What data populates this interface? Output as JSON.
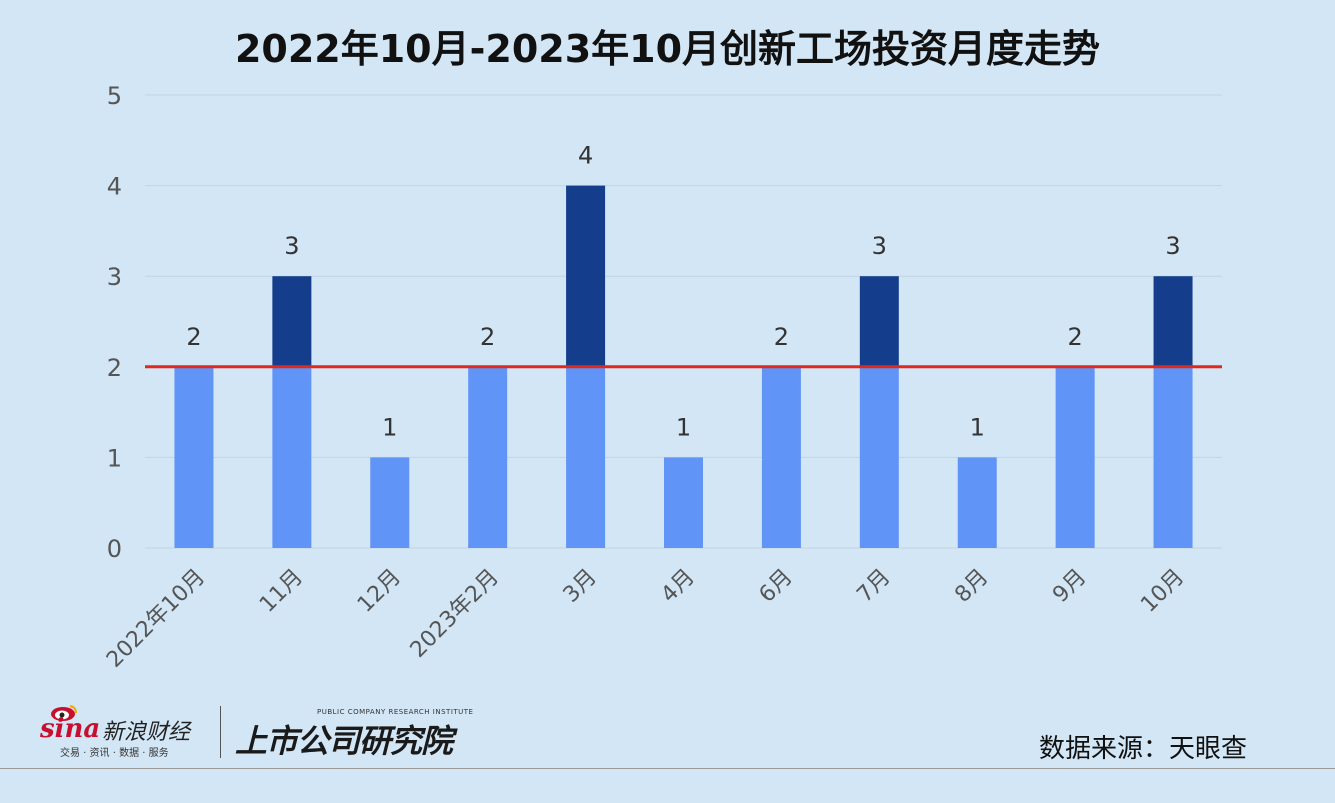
{
  "chart_data": {
    "type": "bar",
    "title": "2022年10月-2023年10月创新工场投资月度走势",
    "categories": [
      "2022年10月",
      "11月",
      "12月",
      "2023年2月",
      "3月",
      "4月",
      "6月",
      "7月",
      "8月",
      "9月",
      "10月"
    ],
    "values": [
      2,
      3,
      1,
      2,
      4,
      1,
      2,
      3,
      1,
      2,
      3
    ],
    "data_labels": [
      "2",
      "3",
      "1",
      "2",
      "4",
      "1",
      "2",
      "3",
      "1",
      "2",
      "3"
    ],
    "y_ticks": [
      "0",
      "1",
      "2",
      "3",
      "4",
      "5"
    ],
    "ylim": [
      0,
      5
    ],
    "reference_line": {
      "value": 2,
      "color": "#e0281c"
    },
    "colors": {
      "base": "#6194f7",
      "above": "#143e8c"
    },
    "grid": true,
    "xlabel": "",
    "ylabel": ""
  },
  "footer": {
    "sina_brand": "sina",
    "sina_name": "新浪财经",
    "sina_sub": "交易 · 资讯 · 数据 · 服务",
    "inst_en": "PUBLIC COMPANY RESEARCH INSTITUTE",
    "inst_cn": "上市公司研究院",
    "source": "数据来源：天眼查"
  }
}
